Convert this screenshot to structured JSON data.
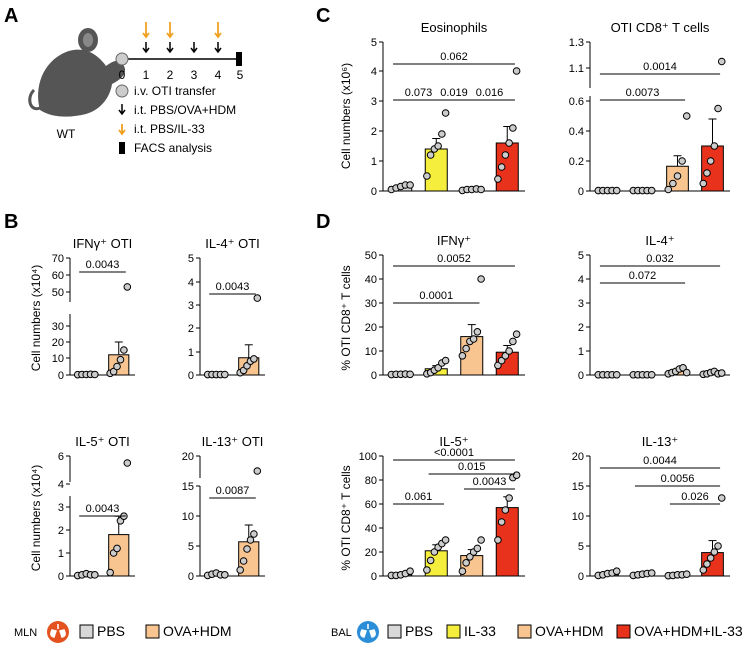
{
  "colors": {
    "PBS": "#d8d8d8",
    "IL-33": "#f6ee3c",
    "OVA+HDM": "#f8c490",
    "OVA+HDM+IL-33": "#e8321c",
    "lung_icon_mln": "#e4531f",
    "lung_icon_bal": "#2a8fd8"
  },
  "panel_letters": {
    "a": "A",
    "b": "B",
    "c": "C",
    "d": "D"
  },
  "panelA": {
    "mouse_label": "WT",
    "days": [
      "0",
      "1",
      "2",
      "3",
      "4",
      "5"
    ],
    "legend": [
      "i.v. OTI transfer",
      "i.t. PBS/OVA+HDM",
      "i.t. PBS/IL-33",
      "FACS analysis"
    ]
  },
  "labels": {
    "ylabel_b": "Cell numbers (x10⁴)",
    "ylabel_c": "Cell numbers (x10⁶)",
    "ylabel_d": "% OTI CD8⁺ T cells"
  },
  "legend_b": {
    "tissue": "MLN",
    "items": [
      "PBS",
      "OVA+HDM"
    ]
  },
  "legend_d": {
    "tissue": "BAL",
    "items": [
      "PBS",
      "IL-33",
      "OVA+HDM",
      "OVA+HDM+IL-33"
    ]
  },
  "chart_data": [
    {
      "type": "bar",
      "panel": "B",
      "title": "IFNγ⁺ OTI",
      "categories": [
        "PBS",
        "OVA+HDM"
      ],
      "values": [
        0.3,
        12
      ],
      "errors": [
        0.1,
        8
      ],
      "ylim": [
        0,
        70
      ],
      "yticks": [
        "0",
        "10",
        "20",
        "30",
        "50",
        "60",
        "70"
      ],
      "points": [
        [
          0.2,
          0.3,
          0.3,
          0.4,
          0.3
        ],
        [
          1,
          2,
          5,
          9,
          15,
          53
        ]
      ],
      "comparisons": [
        {
          "label": "0.0043"
        }
      ]
    },
    {
      "type": "bar",
      "panel": "B",
      "title": "IL-4⁺ OTI",
      "categories": [
        "PBS",
        "OVA+HDM"
      ],
      "values": [
        0.02,
        0.75
      ],
      "errors": [
        0,
        0.55
      ],
      "ylim": [
        0,
        5
      ],
      "yticks": [
        "0",
        "1",
        "2",
        "3",
        "4",
        "5"
      ],
      "points": [
        [
          0.02,
          0.02,
          0.02,
          0.02,
          0.02
        ],
        [
          0.1,
          0.2,
          0.4,
          0.6,
          0.7,
          3.3
        ]
      ],
      "comparisons": [
        {
          "label": "0.0043"
        }
      ]
    },
    {
      "type": "bar",
      "panel": "B",
      "title": "IL-5⁺ OTI",
      "categories": [
        "PBS",
        "OVA+HDM"
      ],
      "values": [
        0.05,
        1.8
      ],
      "errors": [
        0.02,
        0.8
      ],
      "ylim": [
        0,
        6
      ],
      "yticks": [
        "0",
        "1",
        "2",
        "3",
        "4",
        "6"
      ],
      "points": [
        [
          0.02,
          0.05,
          0.1,
          0.05,
          0.05
        ],
        [
          0.15,
          1.0,
          1.2,
          2.4,
          2.6,
          5.5
        ]
      ],
      "comparisons": [
        {
          "label": "0.0043"
        }
      ]
    },
    {
      "type": "bar",
      "panel": "B",
      "title": "IL-13⁺ OTI",
      "categories": [
        "PBS",
        "OVA+HDM"
      ],
      "values": [
        0.3,
        5.7
      ],
      "errors": [
        0.1,
        2.8
      ],
      "ylim": [
        0,
        20
      ],
      "yticks": [
        "0",
        "5",
        "10",
        "15",
        "20"
      ],
      "points": [
        [
          0.1,
          0.3,
          0.5,
          0.2,
          0.2
        ],
        [
          1,
          2.5,
          4.5,
          6,
          7,
          17.5
        ]
      ],
      "comparisons": [
        {
          "label": "0.0087"
        }
      ]
    },
    {
      "type": "bar",
      "panel": "C",
      "title": "Eosinophils",
      "categories": [
        "PBS",
        "IL-33",
        "OVA+HDM",
        "OVA+HDM+IL-33"
      ],
      "values": [
        0.15,
        1.4,
        0.05,
        1.6
      ],
      "errors": [
        0.05,
        0.35,
        0.02,
        0.55
      ],
      "ylim": [
        0,
        5
      ],
      "yticks": [
        "0",
        "1",
        "2",
        "3",
        "4",
        "5"
      ],
      "points": [
        [
          0.05,
          0.1,
          0.15,
          0.2,
          0.2
        ],
        [
          0.5,
          1.2,
          1.4,
          1.5,
          1.9,
          2.6
        ],
        [
          0.02,
          0.05,
          0.05,
          0.07,
          0.05
        ],
        [
          0.4,
          0.8,
          1.2,
          1.6,
          2.1,
          4.0
        ]
      ],
      "comparisons": [
        {
          "label": "0.073"
        },
        {
          "label": "0.019"
        },
        {
          "label": "0.016"
        },
        {
          "label": "0.062"
        }
      ]
    },
    {
      "type": "bar",
      "panel": "C",
      "title": "OTI CD8⁺ T cells",
      "categories": [
        "PBS",
        "IL-33",
        "OVA+HDM",
        "OVA+HDM+IL-33"
      ],
      "values": [
        0.003,
        0.003,
        0.165,
        0.3
      ],
      "errors": [
        0,
        0,
        0.07,
        0.18
      ],
      "ylim": [
        0,
        1.3
      ],
      "yticks": [
        "0",
        "0.2",
        "0.4",
        "0.6",
        "1.1",
        "1.3"
      ],
      "points": [
        [
          0.003,
          0.003,
          0.003,
          0.003,
          0.003
        ],
        [
          0.003,
          0.003,
          0.003,
          0.003,
          0.003
        ],
        [
          0.01,
          0.05,
          0.1,
          0.2,
          0.5
        ],
        [
          0.05,
          0.12,
          0.2,
          0.3,
          0.55,
          1.15
        ]
      ],
      "comparisons": [
        {
          "label": "0.0073"
        },
        {
          "label": "0.0014"
        }
      ]
    },
    {
      "type": "bar",
      "panel": "D",
      "title": "IFNγ⁺",
      "categories": [
        "PBS",
        "IL-33",
        "OVA+HDM",
        "OVA+HDM+IL-33"
      ],
      "values": [
        0.3,
        2.6,
        16,
        9.5
      ],
      "errors": [
        0.1,
        1.3,
        5,
        2.8
      ],
      "ylim": [
        0,
        50
      ],
      "yticks": [
        "0",
        "10",
        "20",
        "30",
        "40",
        "50"
      ],
      "points": [
        [
          0.2,
          0.3,
          0.3,
          0.4,
          0.3
        ],
        [
          0.5,
          1,
          2,
          3,
          5,
          6
        ],
        [
          8,
          11,
          14,
          15,
          18,
          40
        ],
        [
          4,
          6,
          8,
          10,
          14,
          17
        ]
      ],
      "comparisons": [
        {
          "label": "0.0001"
        },
        {
          "label": "0.0052"
        }
      ]
    },
    {
      "type": "bar",
      "panel": "D",
      "title": "IL-4⁺",
      "categories": [
        "PBS",
        "IL-33",
        "OVA+HDM",
        "OVA+HDM+IL-33"
      ],
      "values": [
        0.01,
        0.01,
        0.15,
        0.08
      ],
      "errors": [
        0,
        0,
        0.05,
        0.03
      ],
      "ylim": [
        0,
        5
      ],
      "yticks": [
        "0",
        "1",
        "2",
        "3",
        "4",
        "5"
      ],
      "points": [
        [
          0.01,
          0.01,
          0.01,
          0.01,
          0.01
        ],
        [
          0.01,
          0.01,
          0.01,
          0.01,
          0.01
        ],
        [
          0.05,
          0.1,
          0.15,
          0.25,
          0.3,
          0.1
        ],
        [
          0.03,
          0.05,
          0.1,
          0.15,
          0.05,
          0.08
        ]
      ],
      "comparisons": [
        {
          "label": "0.072"
        },
        {
          "label": "0.032"
        }
      ]
    },
    {
      "type": "bar",
      "panel": "D",
      "title": "IL-5⁺",
      "categories": [
        "PBS",
        "IL-33",
        "OVA+HDM",
        "OVA+HDM+IL-33"
      ],
      "values": [
        1,
        21,
        17,
        57
      ],
      "errors": [
        1,
        5,
        5,
        9
      ],
      "ylim": [
        0,
        100
      ],
      "yticks": [
        "0",
        "20",
        "40",
        "60",
        "80",
        "100"
      ],
      "points": [
        [
          0.5,
          0.5,
          1,
          2,
          4
        ],
        [
          5,
          13,
          20,
          24,
          27,
          30
        ],
        [
          4,
          11,
          16,
          20,
          23,
          30
        ],
        [
          30,
          45,
          55,
          65,
          82,
          84
        ]
      ],
      "comparisons": [
        {
          "label": "0.061"
        },
        {
          "label": "0.0043"
        },
        {
          "label": "0.015"
        },
        {
          "label": "<0.0001"
        }
      ]
    },
    {
      "type": "bar",
      "panel": "D",
      "title": "IL-13⁺",
      "categories": [
        "PBS",
        "IL-33",
        "OVA+HDM",
        "OVA+HDM+IL-33"
      ],
      "values": [
        0.2,
        0.2,
        0.2,
        3.9
      ],
      "errors": [
        0.1,
        0.1,
        0.05,
        2
      ],
      "ylim": [
        0,
        20
      ],
      "yticks": [
        "0",
        "5",
        "10",
        "15",
        "20"
      ],
      "points": [
        [
          0.1,
          0.2,
          0.4,
          0.5,
          0.8
        ],
        [
          0.1,
          0.2,
          0.3,
          0.4,
          0.5
        ],
        [
          0.05,
          0.1,
          0.2,
          0.2,
          0.3
        ],
        [
          1,
          2,
          3,
          4,
          5,
          13
        ]
      ],
      "comparisons": [
        {
          "label": "0.026"
        },
        {
          "label": "0.0056"
        },
        {
          "label": "0.0044"
        }
      ]
    }
  ]
}
